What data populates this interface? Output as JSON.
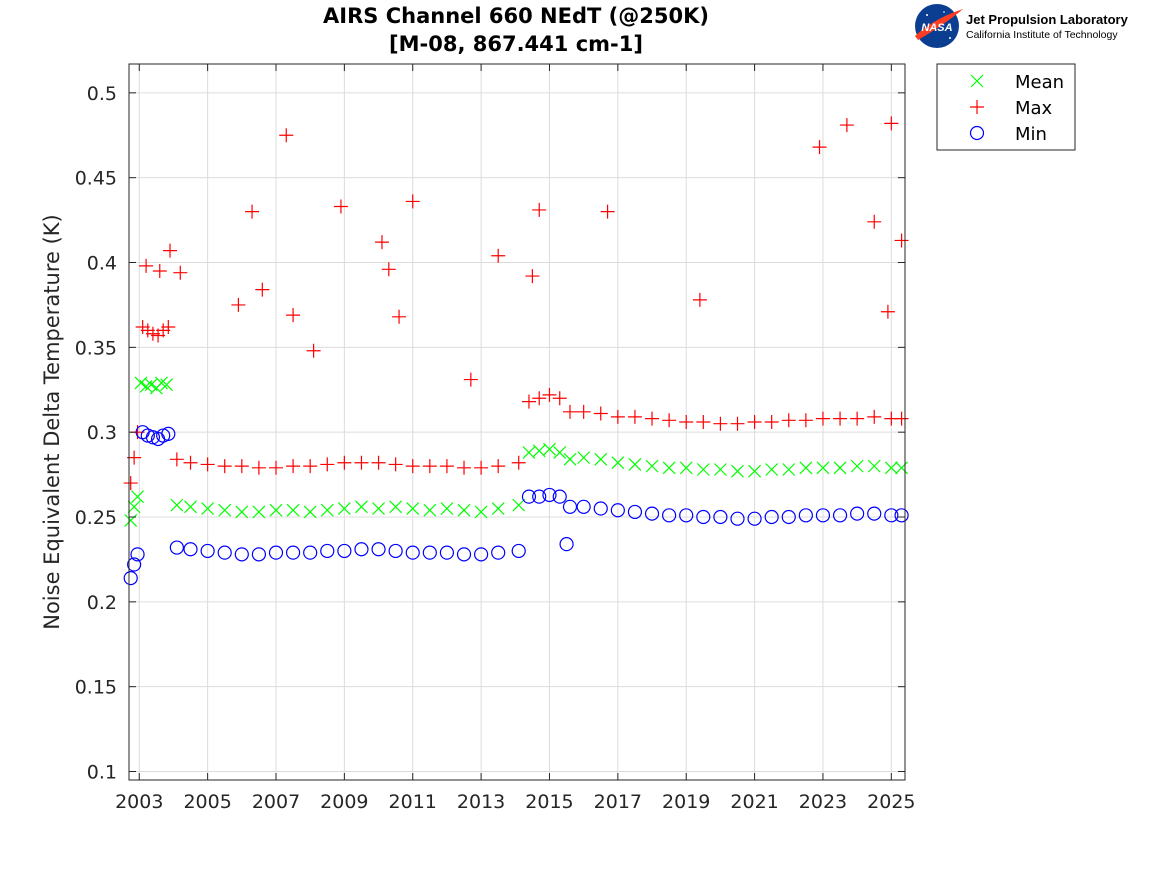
{
  "logo": {
    "agency_mark": "NASA",
    "org_name": "Jet Propulsion Laboratory",
    "org_sub": "California Institute of Technology"
  },
  "colors": {
    "mean": "#00ff00",
    "max": "#ff0000",
    "min": "#0000ff",
    "grid": "#dcdcdc",
    "axis": "#262626"
  },
  "chart_data": {
    "type": "scatter",
    "title": "AIRS Channel 660 NEdT (@250K)",
    "subtitle": "[M-08, 867.441 cm-1]",
    "xlabel": "",
    "ylabel": "Noise Equivalent Delta Temperature (K)",
    "xlim": [
      2002.7,
      2025.4
    ],
    "ylim": [
      0.095,
      0.517
    ],
    "x_ticks": [
      2003,
      2005,
      2007,
      2009,
      2011,
      2013,
      2015,
      2017,
      2019,
      2021,
      2023,
      2025
    ],
    "x_tick_labels": [
      "2003",
      "2005",
      "2007",
      "2009",
      "2011",
      "2013",
      "2015",
      "2017",
      "2019",
      "2021",
      "2023",
      "2025"
    ],
    "y_ticks": [
      0.1,
      0.15,
      0.2,
      0.25,
      0.3,
      0.35,
      0.4,
      0.45,
      0.5
    ],
    "y_tick_labels": [
      "0.1",
      "0.15",
      "0.2",
      "0.25",
      "0.3",
      "0.35",
      "0.4",
      "0.45",
      "0.5"
    ],
    "grid": true,
    "legend_position": "outside-top-right",
    "series": [
      {
        "name": "Mean",
        "marker": "x",
        "color": "#00ff00",
        "x": [
          2002.75,
          2002.85,
          2002.95,
          2003.05,
          2003.2,
          2003.35,
          2003.5,
          2003.65,
          2003.8,
          2004.1,
          2004.5,
          2005.0,
          2005.5,
          2006.0,
          2006.5,
          2007.0,
          2007.5,
          2008.0,
          2008.5,
          2009.0,
          2009.5,
          2010.0,
          2010.5,
          2011.0,
          2011.5,
          2012.0,
          2012.5,
          2013.0,
          2013.5,
          2014.1,
          2014.4,
          2014.7,
          2015.0,
          2015.3,
          2015.6,
          2016.0,
          2016.5,
          2017.0,
          2017.5,
          2018.0,
          2018.5,
          2019.0,
          2019.5,
          2020.0,
          2020.5,
          2021.0,
          2021.5,
          2022.0,
          2022.5,
          2023.0,
          2023.5,
          2024.0,
          2024.5,
          2025.0,
          2025.3
        ],
        "y": [
          0.248,
          0.256,
          0.262,
          0.329,
          0.327,
          0.328,
          0.326,
          0.329,
          0.328,
          0.257,
          0.256,
          0.255,
          0.254,
          0.253,
          0.253,
          0.254,
          0.254,
          0.253,
          0.254,
          0.255,
          0.256,
          0.255,
          0.256,
          0.255,
          0.254,
          0.255,
          0.254,
          0.253,
          0.255,
          0.257,
          0.288,
          0.289,
          0.29,
          0.288,
          0.284,
          0.285,
          0.284,
          0.282,
          0.281,
          0.28,
          0.279,
          0.279,
          0.278,
          0.278,
          0.277,
          0.277,
          0.278,
          0.278,
          0.279,
          0.279,
          0.279,
          0.28,
          0.28,
          0.279,
          0.279
        ]
      },
      {
        "name": "Max",
        "marker": "+",
        "color": "#ff0000",
        "x": [
          2002.75,
          2002.85,
          2002.95,
          2003.1,
          2003.25,
          2003.4,
          2003.55,
          2003.7,
          2003.85,
          2004.1,
          2004.5,
          2005.0,
          2005.5,
          2006.0,
          2006.5,
          2007.0,
          2007.5,
          2008.0,
          2008.5,
          2009.0,
          2009.5,
          2010.0,
          2010.5,
          2011.0,
          2011.5,
          2012.0,
          2012.5,
          2013.0,
          2013.5,
          2014.1,
          2014.4,
          2014.7,
          2015.0,
          2015.3,
          2015.6,
          2016.0,
          2016.5,
          2017.0,
          2017.5,
          2018.0,
          2018.5,
          2019.0,
          2019.5,
          2020.0,
          2020.5,
          2021.0,
          2021.5,
          2022.0,
          2022.5,
          2023.0,
          2023.5,
          2024.0,
          2024.5,
          2025.0,
          2025.3,
          2003.2,
          2003.6,
          2003.9,
          2004.2,
          2005.9,
          2006.3,
          2006.6,
          2007.3,
          2007.5,
          2008.1,
          2008.9,
          2010.1,
          2010.3,
          2010.6,
          2011.0,
          2012.7,
          2013.5,
          2014.5,
          2014.7,
          2016.7,
          2019.4,
          2022.9,
          2023.7,
          2024.5,
          2024.9,
          2025.0,
          2025.3
        ],
        "y": [
          0.27,
          0.285,
          0.3,
          0.362,
          0.36,
          0.358,
          0.357,
          0.36,
          0.362,
          0.284,
          0.282,
          0.281,
          0.28,
          0.28,
          0.279,
          0.279,
          0.28,
          0.28,
          0.281,
          0.282,
          0.282,
          0.282,
          0.281,
          0.28,
          0.28,
          0.28,
          0.279,
          0.279,
          0.28,
          0.282,
          0.318,
          0.32,
          0.322,
          0.32,
          0.312,
          0.312,
          0.311,
          0.309,
          0.309,
          0.308,
          0.307,
          0.306,
          0.306,
          0.305,
          0.305,
          0.306,
          0.306,
          0.307,
          0.307,
          0.308,
          0.308,
          0.308,
          0.309,
          0.308,
          0.308,
          0.398,
          0.395,
          0.407,
          0.394,
          0.375,
          0.43,
          0.384,
          0.475,
          0.369,
          0.348,
          0.433,
          0.412,
          0.396,
          0.368,
          0.436,
          0.331,
          0.404,
          0.392,
          0.431,
          0.43,
          0.378,
          0.468,
          0.481,
          0.424,
          0.371,
          0.482,
          0.413
        ]
      },
      {
        "name": "Min",
        "marker": "o",
        "color": "#0000ff",
        "x": [
          2002.75,
          2002.85,
          2002.95,
          2003.1,
          2003.25,
          2003.4,
          2003.55,
          2003.7,
          2003.85,
          2004.1,
          2004.5,
          2005.0,
          2005.5,
          2006.0,
          2006.5,
          2007.0,
          2007.5,
          2008.0,
          2008.5,
          2009.0,
          2009.5,
          2010.0,
          2010.5,
          2011.0,
          2011.5,
          2012.0,
          2012.5,
          2013.0,
          2013.5,
          2014.1,
          2014.4,
          2014.7,
          2015.0,
          2015.3,
          2015.6,
          2016.0,
          2016.5,
          2017.0,
          2017.5,
          2018.0,
          2018.5,
          2019.0,
          2019.5,
          2020.0,
          2020.5,
          2021.0,
          2021.5,
          2022.0,
          2022.5,
          2023.0,
          2023.5,
          2024.0,
          2024.5,
          2025.0,
          2025.3,
          2015.5
        ],
        "y": [
          0.214,
          0.222,
          0.228,
          0.3,
          0.298,
          0.297,
          0.296,
          0.298,
          0.299,
          0.232,
          0.231,
          0.23,
          0.229,
          0.228,
          0.228,
          0.229,
          0.229,
          0.229,
          0.23,
          0.23,
          0.231,
          0.231,
          0.23,
          0.229,
          0.229,
          0.229,
          0.228,
          0.228,
          0.229,
          0.23,
          0.262,
          0.262,
          0.263,
          0.262,
          0.256,
          0.256,
          0.255,
          0.254,
          0.253,
          0.252,
          0.251,
          0.251,
          0.25,
          0.25,
          0.249,
          0.249,
          0.25,
          0.25,
          0.251,
          0.251,
          0.251,
          0.252,
          0.252,
          0.251,
          0.251,
          0.234
        ]
      }
    ]
  }
}
